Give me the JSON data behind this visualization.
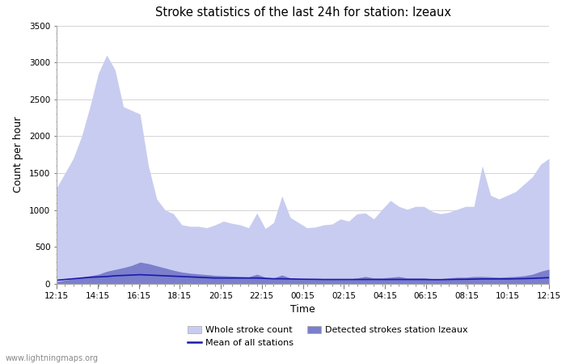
{
  "title": "Stroke statistics of the last 24h for station: Izeaux",
  "xlabel": "Time",
  "ylabel": "Count per hour",
  "ylim": [
    0,
    3500
  ],
  "watermark": "www.lightningmaps.org",
  "x_labels": [
    "12:15",
    "14:15",
    "16:15",
    "18:15",
    "20:15",
    "22:15",
    "00:15",
    "02:15",
    "04:15",
    "06:15",
    "08:15",
    "10:15",
    "12:15"
  ],
  "whole_stroke_color": "#c8ccf0",
  "detected_stroke_color": "#7b7fcc",
  "mean_line_color": "#1a1aaa",
  "whole_stroke_data": [
    1300,
    1500,
    1700,
    2000,
    2400,
    2850,
    3100,
    2900,
    2400,
    2350,
    2300,
    1600,
    1150,
    1000,
    950,
    800,
    780,
    780,
    760,
    800,
    850,
    820,
    800,
    760,
    960,
    750,
    830,
    1190,
    900,
    830,
    760,
    770,
    800,
    810,
    880,
    850,
    950,
    960,
    880,
    1010,
    1130,
    1050,
    1010,
    1050,
    1050,
    980,
    950,
    970,
    1010,
    1050,
    1050,
    1600,
    1200,
    1150,
    1200,
    1250,
    1350,
    1450,
    1620,
    1700
  ],
  "detected_stroke_data": [
    30,
    50,
    70,
    90,
    110,
    130,
    170,
    195,
    220,
    250,
    295,
    275,
    245,
    215,
    185,
    160,
    145,
    135,
    125,
    115,
    110,
    105,
    100,
    95,
    130,
    90,
    80,
    120,
    80,
    70,
    60,
    60,
    60,
    65,
    70,
    65,
    80,
    100,
    80,
    80,
    90,
    100,
    80,
    80,
    80,
    70,
    70,
    80,
    90,
    90,
    100,
    100,
    95,
    90,
    95,
    100,
    110,
    130,
    170,
    200
  ],
  "mean_line_data": [
    50,
    60,
    70,
    80,
    90,
    95,
    100,
    110,
    115,
    120,
    125,
    120,
    115,
    110,
    105,
    100,
    95,
    90,
    85,
    80,
    80,
    80,
    80,
    80,
    80,
    75,
    70,
    70,
    68,
    65,
    63,
    62,
    60,
    60,
    60,
    60,
    60,
    60,
    60,
    60,
    60,
    60,
    60,
    60,
    60,
    58,
    58,
    60,
    62,
    63,
    65,
    68,
    68,
    68,
    68,
    70,
    72,
    75,
    80,
    85
  ],
  "n_points": 60
}
